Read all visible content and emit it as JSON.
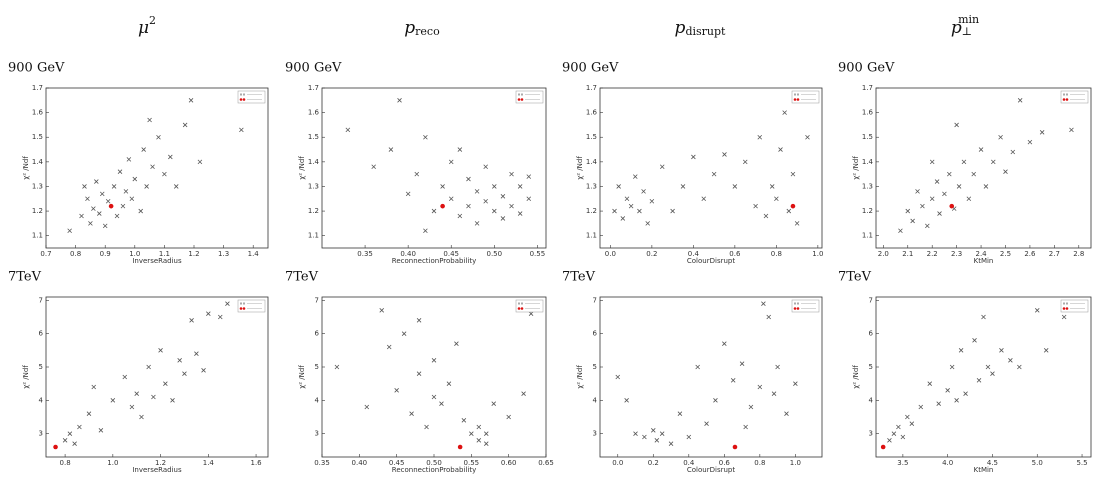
{
  "column_titles": [
    {
      "base": "μ",
      "sup": "2"
    },
    {
      "base": "p",
      "sub": "reco"
    },
    {
      "base": "p",
      "sub": "disrupt"
    },
    {
      "base": "p",
      "sub": "⊥",
      "sup": "min"
    }
  ],
  "chart_data": [
    {
      "type": "scatter",
      "title": "900 GeV",
      "xlabel": "InverseRadius",
      "ylabel": "χ² /Ndf",
      "xlim": [
        0.7,
        1.45
      ],
      "xticks": [
        0.7,
        0.8,
        0.9,
        {
          "value": 1.0,
          "label": "1.0"
        },
        1.1,
        1.2,
        1.3,
        1.4
      ],
      "ylim": [
        1.05,
        1.7
      ],
      "yticks": [
        1.1,
        1.2,
        1.3,
        1.4,
        1.5,
        1.6,
        1.7
      ],
      "series": [
        {
          "color": "#555555",
          "marker": "x",
          "x": [
            0.78,
            0.82,
            0.84,
            0.85,
            0.86,
            0.87,
            0.88,
            0.89,
            0.9,
            0.91,
            0.93,
            0.94,
            0.95,
            0.96,
            0.97,
            0.98,
            0.99,
            1.0,
            1.02,
            1.03,
            1.04,
            1.06,
            1.08,
            1.1,
            1.12,
            1.14,
            1.17,
            1.19,
            1.22,
            1.36,
            1.05,
            0.83
          ],
          "values": [
            1.12,
            1.18,
            1.25,
            1.15,
            1.21,
            1.32,
            1.19,
            1.27,
            1.14,
            1.24,
            1.3,
            1.18,
            1.36,
            1.22,
            1.28,
            1.41,
            1.25,
            1.33,
            1.2,
            1.45,
            1.3,
            1.38,
            1.5,
            1.35,
            1.42,
            1.3,
            1.55,
            1.65,
            1.4,
            1.53,
            1.57,
            1.3
          ]
        },
        {
          "color": "#dd1111",
          "marker": "dot",
          "x": [
            0.92
          ],
          "values": [
            1.22
          ]
        }
      ]
    },
    {
      "type": "scatter",
      "title": "900 GeV",
      "xlabel": "ReconnectionProbability",
      "ylabel": "χ² /Ndf",
      "xlim": [
        0.3,
        0.56
      ],
      "xticks": [
        0.35,
        {
          "value": 0.4,
          "label": "0.40"
        },
        0.45,
        {
          "value": 0.5,
          "label": "0.50"
        },
        0.55
      ],
      "ylim": [
        1.05,
        1.7
      ],
      "yticks": [
        1.1,
        1.2,
        1.3,
        1.4,
        1.5,
        1.6,
        1.7
      ],
      "series": [
        {
          "color": "#555555",
          "marker": "x",
          "x": [
            0.33,
            0.36,
            0.38,
            0.39,
            0.4,
            0.41,
            0.42,
            0.43,
            0.44,
            0.45,
            0.45,
            0.46,
            0.47,
            0.47,
            0.48,
            0.48,
            0.49,
            0.49,
            0.5,
            0.5,
            0.51,
            0.51,
            0.52,
            0.52,
            0.53,
            0.53,
            0.54,
            0.54,
            0.46,
            0.42
          ],
          "values": [
            1.53,
            1.38,
            1.45,
            1.65,
            1.27,
            1.35,
            1.5,
            1.2,
            1.3,
            1.4,
            1.25,
            1.18,
            1.33,
            1.22,
            1.28,
            1.15,
            1.38,
            1.24,
            1.2,
            1.3,
            1.17,
            1.26,
            1.22,
            1.35,
            1.19,
            1.3,
            1.25,
            1.34,
            1.45,
            1.12
          ]
        },
        {
          "color": "#dd1111",
          "marker": "dot",
          "x": [
            0.44
          ],
          "values": [
            1.22
          ]
        }
      ]
    },
    {
      "type": "scatter",
      "title": "900 GeV",
      "xlabel": "ColourDisrupt",
      "ylabel": "χ² /Ndf",
      "xlim": [
        -0.05,
        1.02
      ],
      "xticks": [
        {
          "value": 0,
          "label": "0.0"
        },
        0.2,
        0.4,
        0.6,
        0.8,
        {
          "value": 1,
          "label": "1.0"
        }
      ],
      "ylim": [
        1.05,
        1.7
      ],
      "yticks": [
        1.1,
        1.2,
        1.3,
        1.4,
        1.5,
        1.6,
        1.7
      ],
      "series": [
        {
          "color": "#555555",
          "marker": "x",
          "x": [
            0.02,
            0.04,
            0.06,
            0.08,
            0.1,
            0.12,
            0.14,
            0.16,
            0.18,
            0.2,
            0.25,
            0.3,
            0.35,
            0.4,
            0.45,
            0.5,
            0.55,
            0.6,
            0.65,
            0.7,
            0.72,
            0.75,
            0.78,
            0.8,
            0.82,
            0.84,
            0.86,
            0.88,
            0.9,
            0.95
          ],
          "values": [
            1.2,
            1.3,
            1.17,
            1.25,
            1.22,
            1.34,
            1.2,
            1.28,
            1.15,
            1.24,
            1.38,
            1.2,
            1.3,
            1.42,
            1.25,
            1.35,
            1.43,
            1.3,
            1.4,
            1.22,
            1.5,
            1.18,
            1.3,
            1.25,
            1.45,
            1.6,
            1.2,
            1.35,
            1.15,
            1.5
          ]
        },
        {
          "color": "#dd1111",
          "marker": "dot",
          "x": [
            0.88
          ],
          "values": [
            1.22
          ]
        }
      ]
    },
    {
      "type": "scatter",
      "title": "900 GeV",
      "xlabel": "KtMin",
      "ylabel": "χ² /Ndf",
      "xlim": [
        1.97,
        2.85
      ],
      "xticks": [
        {
          "value": 2,
          "label": "2.0"
        },
        2.1,
        2.2,
        2.3,
        2.4,
        2.5,
        2.6,
        2.7,
        2.8
      ],
      "ylim": [
        1.05,
        1.7
      ],
      "yticks": [
        1.1,
        1.2,
        1.3,
        1.4,
        1.5,
        1.6,
        1.7
      ],
      "series": [
        {
          "color": "#555555",
          "marker": "x",
          "x": [
            2.07,
            2.1,
            2.12,
            2.14,
            2.16,
            2.18,
            2.2,
            2.22,
            2.23,
            2.25,
            2.27,
            2.29,
            2.31,
            2.33,
            2.35,
            2.37,
            2.4,
            2.42,
            2.45,
            2.48,
            2.5,
            2.53,
            2.56,
            2.6,
            2.65,
            2.77,
            2.3,
            2.2
          ],
          "values": [
            1.12,
            1.2,
            1.16,
            1.28,
            1.22,
            1.14,
            1.25,
            1.32,
            1.19,
            1.27,
            1.35,
            1.21,
            1.3,
            1.4,
            1.25,
            1.35,
            1.45,
            1.3,
            1.4,
            1.5,
            1.36,
            1.44,
            1.65,
            1.48,
            1.52,
            1.53,
            1.55,
            1.4
          ]
        },
        {
          "color": "#dd1111",
          "marker": "dot",
          "x": [
            2.28
          ],
          "values": [
            1.22
          ]
        }
      ]
    },
    {
      "type": "scatter",
      "title": "7TeV",
      "xlabel": "InverseRadius",
      "ylabel": "χ² /Ndf",
      "xlim": [
        0.72,
        1.65
      ],
      "xticks": [
        0.8,
        {
          "value": 1,
          "label": "1.0"
        },
        1.2,
        1.4,
        1.6
      ],
      "ylim": [
        2.3,
        7.1
      ],
      "yticks": [
        3,
        4,
        5,
        6,
        7
      ],
      "series": [
        {
          "color": "#555555",
          "marker": "x",
          "x": [
            0.8,
            0.82,
            0.84,
            0.86,
            0.9,
            0.92,
            0.95,
            1.0,
            1.05,
            1.08,
            1.1,
            1.12,
            1.15,
            1.17,
            1.2,
            1.22,
            1.25,
            1.28,
            1.3,
            1.33,
            1.35,
            1.38,
            1.4,
            1.45,
            1.48
          ],
          "values": [
            2.8,
            3.0,
            2.7,
            3.2,
            3.6,
            4.4,
            3.1,
            4.0,
            4.7,
            3.8,
            4.2,
            3.5,
            5.0,
            4.1,
            5.5,
            4.5,
            4.0,
            5.2,
            4.8,
            6.4,
            5.4,
            4.9,
            6.6,
            6.5,
            6.9
          ]
        },
        {
          "color": "#dd1111",
          "marker": "dot",
          "x": [
            0.76
          ],
          "values": [
            2.6
          ]
        }
      ]
    },
    {
      "type": "scatter",
      "title": "7TeV",
      "xlabel": "ReconnectionProbability",
      "ylabel": "χ² /Ndf",
      "xlim": [
        0.35,
        0.65
      ],
      "xticks": [
        0.35,
        {
          "value": 0.4,
          "label": "0.40"
        },
        0.45,
        {
          "value": 0.5,
          "label": "0.50"
        },
        0.55,
        {
          "value": 0.6,
          "label": "0.60"
        },
        0.65
      ],
      "ylim": [
        2.3,
        7.1
      ],
      "yticks": [
        3,
        4,
        5,
        6,
        7
      ],
      "series": [
        {
          "color": "#555555",
          "marker": "x",
          "x": [
            0.37,
            0.41,
            0.43,
            0.44,
            0.45,
            0.46,
            0.47,
            0.48,
            0.49,
            0.5,
            0.5,
            0.51,
            0.52,
            0.53,
            0.54,
            0.55,
            0.56,
            0.56,
            0.57,
            0.57,
            0.58,
            0.6,
            0.62,
            0.63,
            0.48
          ],
          "values": [
            5.0,
            3.8,
            6.7,
            5.6,
            4.3,
            6.0,
            3.6,
            4.8,
            3.2,
            4.1,
            5.2,
            3.9,
            4.5,
            5.7,
            3.4,
            3.0,
            2.8,
            3.2,
            3.0,
            2.7,
            3.9,
            3.5,
            4.2,
            6.6,
            6.4
          ]
        },
        {
          "color": "#dd1111",
          "marker": "dot",
          "x": [
            0.535
          ],
          "values": [
            2.6
          ]
        }
      ]
    },
    {
      "type": "scatter",
      "title": "7TeV",
      "xlabel": "ColourDisrupt",
      "ylabel": "χ² /Ndf",
      "xlim": [
        -0.1,
        1.15
      ],
      "xticks": [
        {
          "value": 0,
          "label": "0.0"
        },
        0.2,
        0.4,
        0.6,
        0.8,
        {
          "value": 1,
          "label": "1.0"
        }
      ],
      "ylim": [
        2.3,
        7.1
      ],
      "yticks": [
        3,
        4,
        5,
        6,
        7
      ],
      "series": [
        {
          "color": "#555555",
          "marker": "x",
          "x": [
            0.0,
            0.05,
            0.1,
            0.15,
            0.2,
            0.22,
            0.25,
            0.3,
            0.35,
            0.4,
            0.45,
            0.5,
            0.55,
            0.6,
            0.65,
            0.7,
            0.75,
            0.8,
            0.85,
            0.88,
            0.9,
            0.95,
            1.0,
            0.82,
            0.72
          ],
          "values": [
            4.7,
            4.0,
            3.0,
            2.9,
            3.1,
            2.8,
            3.0,
            2.7,
            3.6,
            2.9,
            5.0,
            3.3,
            4.0,
            5.7,
            4.6,
            5.1,
            3.8,
            4.4,
            6.5,
            4.2,
            5.0,
            3.6,
            4.5,
            6.9,
            3.2
          ]
        },
        {
          "color": "#dd1111",
          "marker": "dot",
          "x": [
            0.66
          ],
          "values": [
            2.6
          ]
        }
      ]
    },
    {
      "type": "scatter",
      "title": "7TeV",
      "xlabel": "KtMin",
      "ylabel": "χ² /Ndf",
      "xlim": [
        3.2,
        5.6
      ],
      "xticks": [
        3.5,
        {
          "value": 4,
          "label": "4.0"
        },
        4.5,
        {
          "value": 5,
          "label": "5.0"
        },
        5.5
      ],
      "ylim": [
        2.3,
        7.1
      ],
      "yticks": [
        3,
        4,
        5,
        6,
        7
      ],
      "series": [
        {
          "color": "#555555",
          "marker": "x",
          "x": [
            3.35,
            3.4,
            3.45,
            3.5,
            3.55,
            3.6,
            3.7,
            3.8,
            3.9,
            4.0,
            4.05,
            4.1,
            4.15,
            4.2,
            4.3,
            4.35,
            4.4,
            4.45,
            4.5,
            4.6,
            4.7,
            4.8,
            5.0,
            5.1,
            5.3
          ],
          "values": [
            2.8,
            3.0,
            3.2,
            2.9,
            3.5,
            3.3,
            3.8,
            4.5,
            3.9,
            4.3,
            5.0,
            4.0,
            5.5,
            4.2,
            5.8,
            4.6,
            6.5,
            5.0,
            4.8,
            5.5,
            5.2,
            5.0,
            6.7,
            5.5,
            6.5
          ]
        },
        {
          "color": "#dd1111",
          "marker": "dot",
          "x": [
            3.28
          ],
          "values": [
            2.6
          ]
        }
      ]
    }
  ]
}
